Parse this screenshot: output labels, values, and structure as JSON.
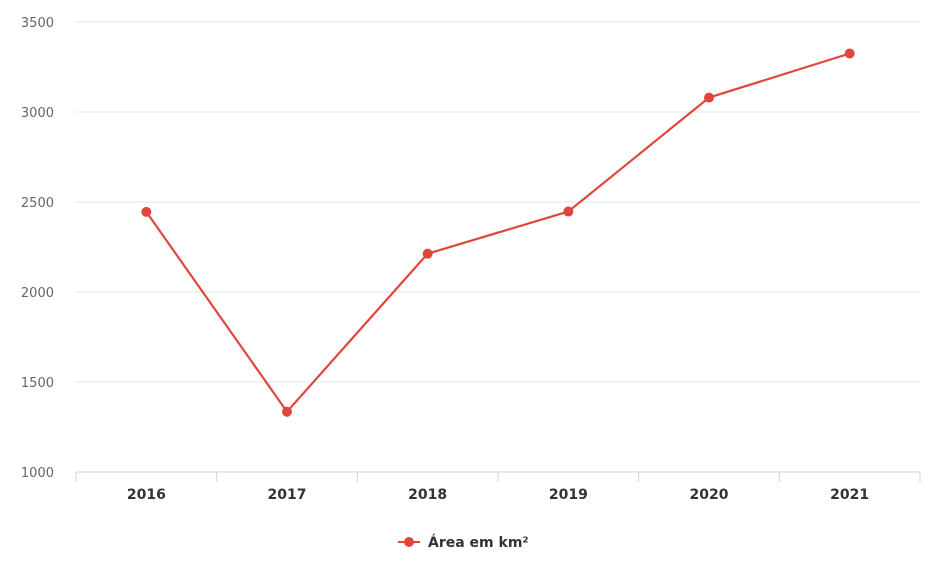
{
  "chart_data": {
    "type": "line",
    "categories": [
      "2016",
      "2017",
      "2018",
      "2019",
      "2020",
      "2021"
    ],
    "series": [
      {
        "name": "Área em km²",
        "values": [
          2445,
          1335,
          2213,
          2447,
          3080,
          3325
        ],
        "color": "#e0473c"
      }
    ],
    "ylim": [
      1000,
      3500
    ],
    "yticks": [
      1000,
      1500,
      2000,
      2500,
      3000,
      3500
    ],
    "ytick_labels": [
      "1000",
      "1500",
      "2000",
      "2500",
      "3000",
      "3500"
    ],
    "grid": true,
    "legend": "bottom-center"
  }
}
